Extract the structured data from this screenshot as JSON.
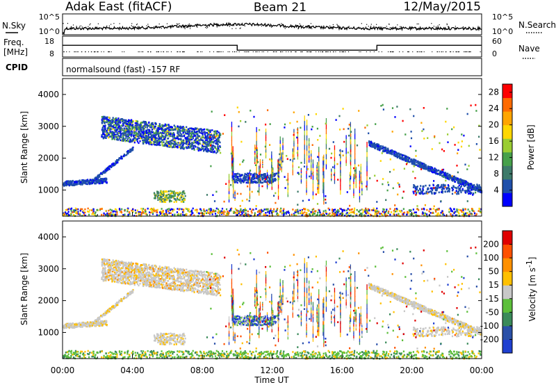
{
  "header": {
    "radar": "Adak East (fitACF)",
    "beam": "Beam 21",
    "date": "12/May/2015"
  },
  "colors": {
    "power_scale": [
      "#0000ff",
      "#1f4faa",
      "#3d7a6a",
      "#46a04a",
      "#9acd32",
      "#ffd700",
      "#ffa500",
      "#ff6a00",
      "#ff0000"
    ],
    "velocity_scale": [
      "#1f3fd0",
      "#2a50a8",
      "#3a8a5a",
      "#5cbf3a",
      "#c8c8c8",
      "#ffc000",
      "#ff9000",
      "#ff5000",
      "#e00000"
    ]
  },
  "chart_data": [
    {
      "type": "line",
      "panel": "noise",
      "left_label": "N.Sky",
      "right_label": "N.Search",
      "left_ticks": [
        "10^5",
        "10^0"
      ],
      "right_ticks": [
        "10^5",
        "10^0"
      ],
      "xlim": [
        "00:00",
        "24:00"
      ]
    },
    {
      "type": "line",
      "panel": "frequency",
      "left_label": "Freq. [MHz]",
      "right_label": "Nave",
      "left_ticks": [
        18,
        8
      ],
      "right_ticks": [
        60,
        0
      ],
      "series": [
        {
          "x": [
            "00:00",
            "10:00",
            "10:00",
            "18:00",
            "18:00",
            "24:00"
          ],
          "values": [
            14,
            14,
            11.5,
            11.5,
            14,
            14
          ]
        }
      ]
    },
    {
      "type": "table",
      "panel": "cpid",
      "left_label": "CPID",
      "text": "normalsound (fast) -157 RF"
    },
    {
      "type": "heatmap",
      "panel": "power",
      "ylabel": "Slant Range [km]",
      "ylim": [
        180,
        4500
      ],
      "yticks": [
        1000,
        2000,
        3000,
        4000
      ],
      "xlim": [
        "00:00",
        "24:00"
      ],
      "colorbar_label": "Power [dB]",
      "colorbar_ticks": [
        4,
        8,
        12,
        16,
        20,
        24,
        28
      ],
      "colorbar_range": [
        0,
        30
      ]
    },
    {
      "type": "heatmap",
      "panel": "velocity",
      "ylabel": "Slant Range [km]",
      "ylim": [
        180,
        4500
      ],
      "yticks": [
        1000,
        2000,
        3000,
        4000
      ],
      "xlabel": "Time UT",
      "xticks": [
        "00:00",
        "04:00",
        "08:00",
        "12:00",
        "16:00",
        "20:00",
        "00:00"
      ],
      "colorbar_label": "Velocity [m s",
      "colorbar_unit_exp": "-1",
      "colorbar_unit_close": "]",
      "colorbar_ticks": [
        200,
        100,
        50,
        15,
        -15,
        -50,
        -100,
        -200
      ]
    }
  ]
}
